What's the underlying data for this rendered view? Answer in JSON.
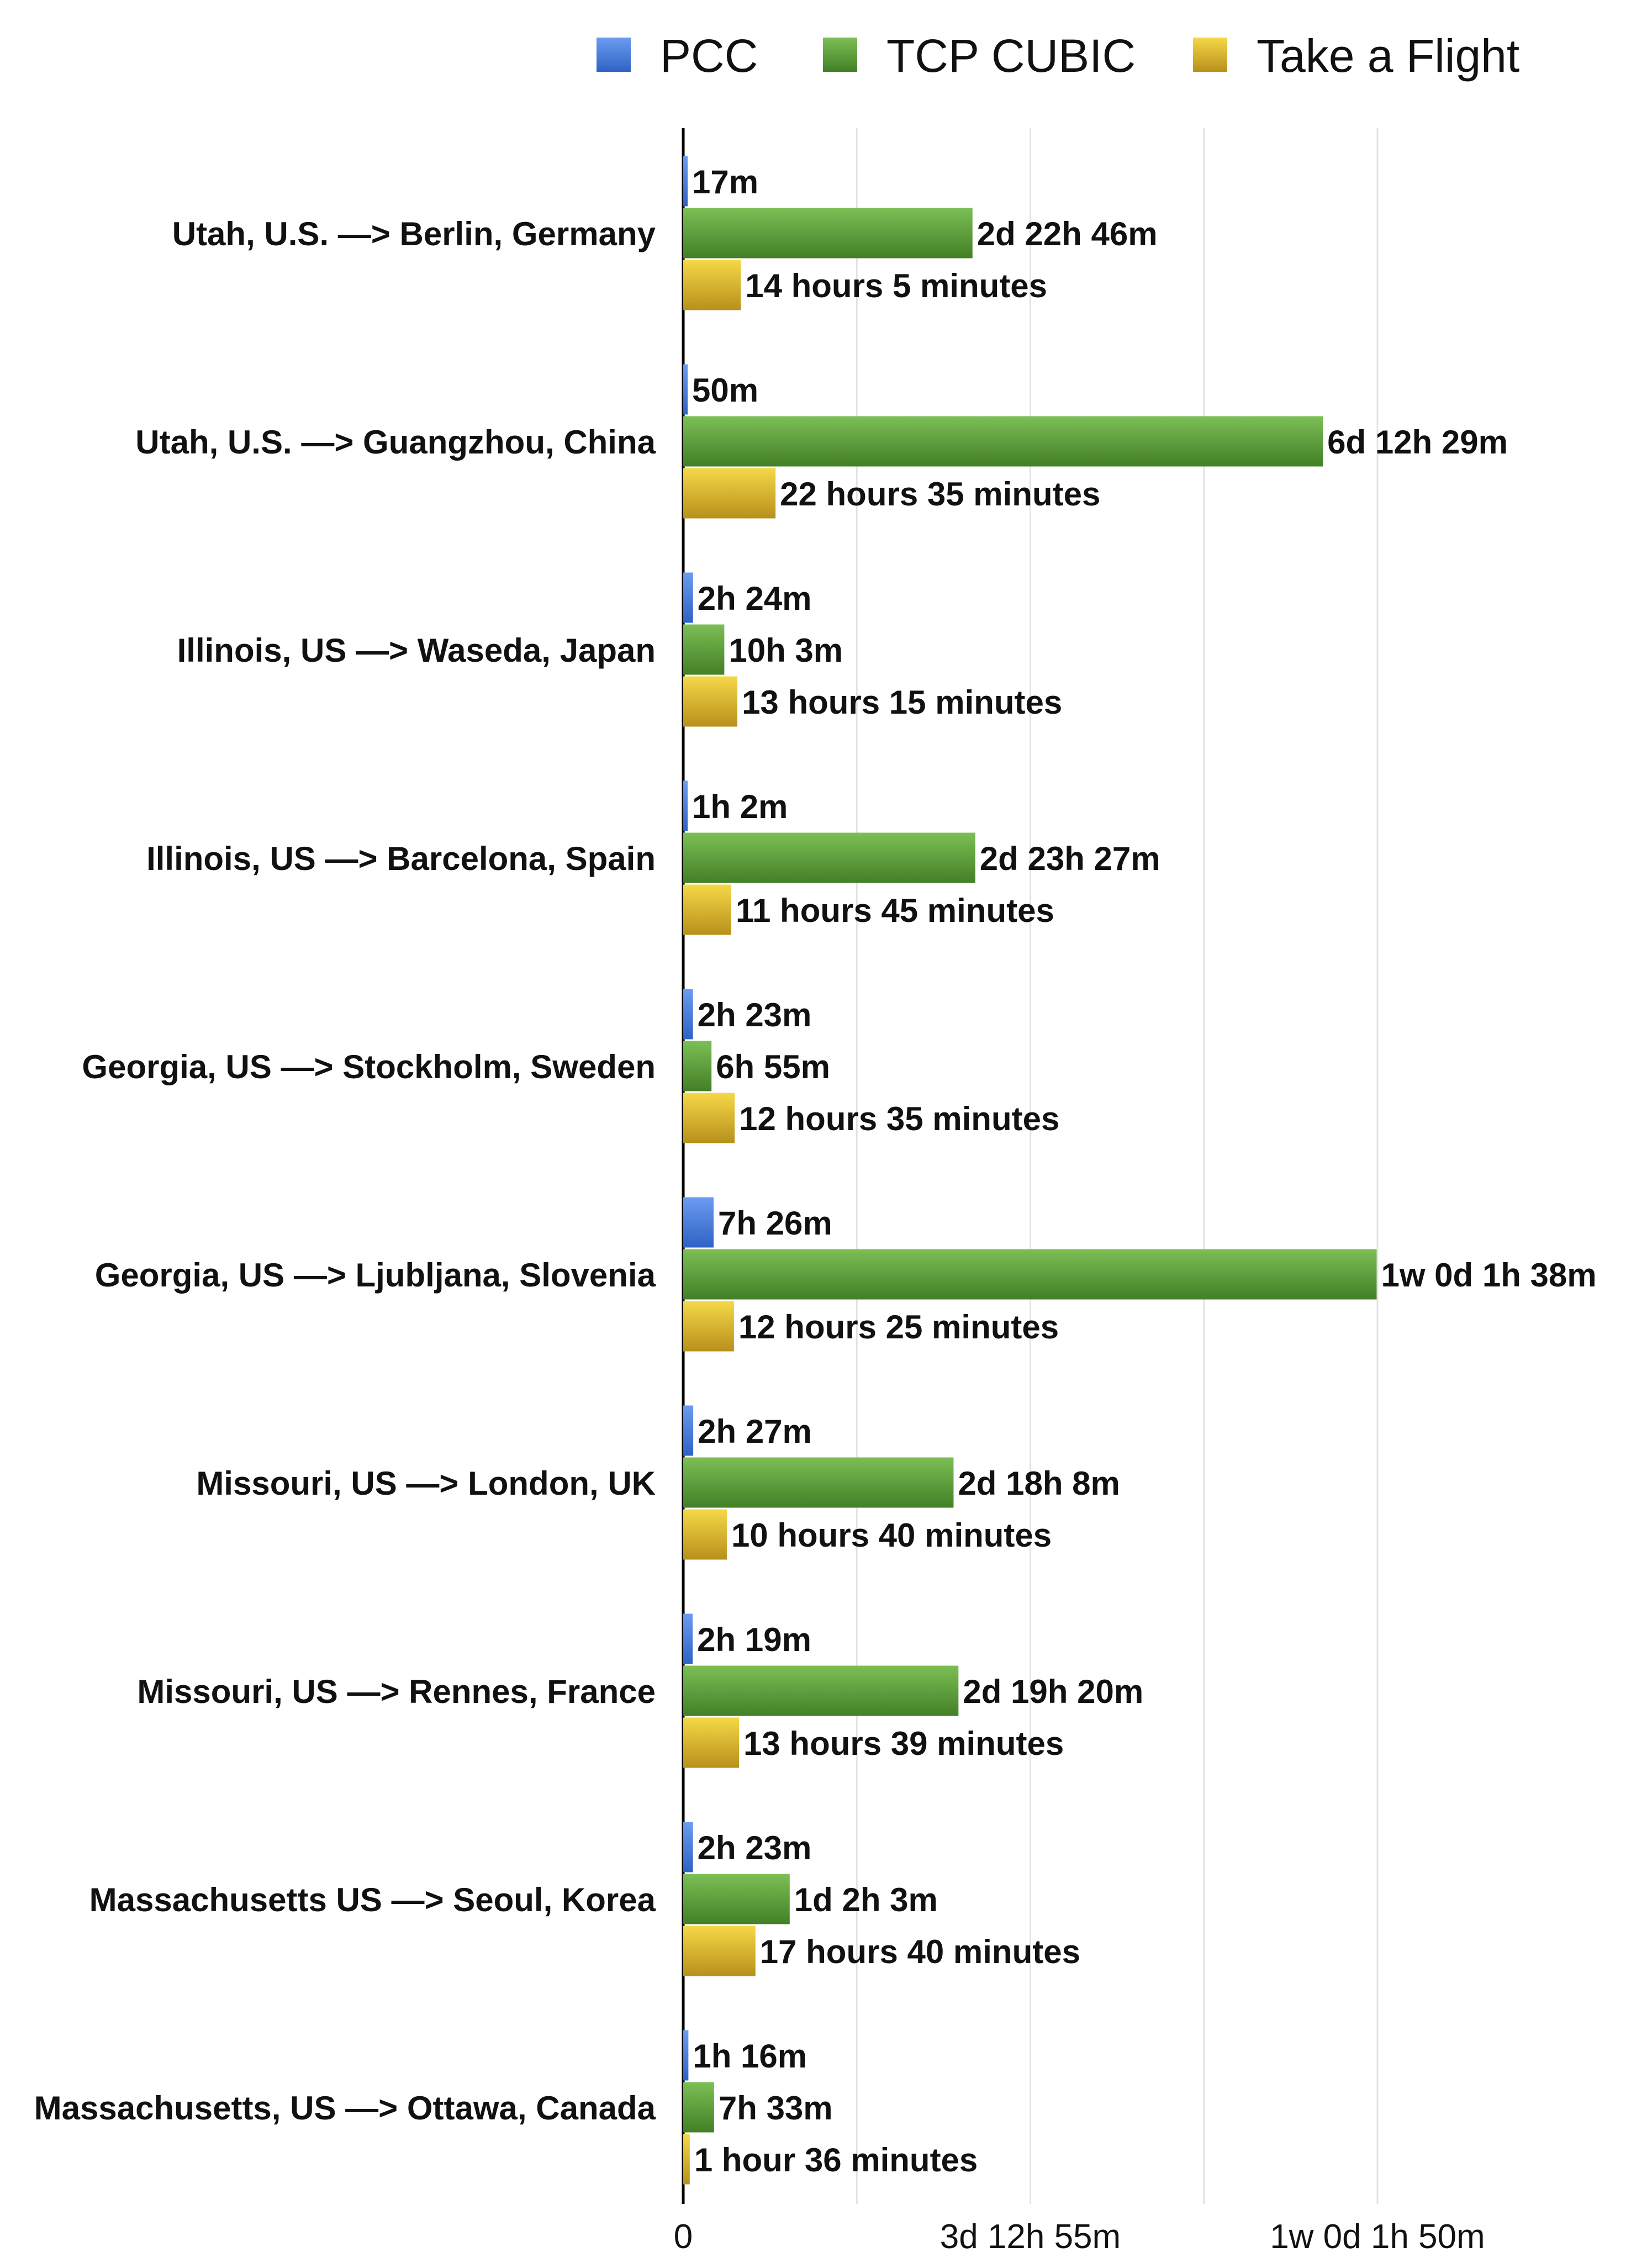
{
  "chart_data": {
    "type": "bar",
    "orientation": "horizontal",
    "legend_position": "top-right",
    "grid": true,
    "x_unit": "minutes",
    "xlim": [
      0,
      11000
    ],
    "ticks": [
      {
        "value": 0,
        "label": "0"
      },
      {
        "value": 5095,
        "label": "3d 12h 55m"
      },
      {
        "value": 10190,
        "label": "1w 0d 1h 50m"
      }
    ],
    "categories": [
      "Utah, U.S. —> Berlin, Germany",
      "Utah, U.S. —> Guangzhou, China",
      "Illinois, US —> Waseda, Japan",
      "Illinois, US —> Barcelona, Spain",
      "Georgia, US —> Stockholm, Sweden",
      "Georgia, US —>  Ljubljana, Slovenia",
      "Missouri, US —> London, UK",
      "Missouri, US —> Rennes, France",
      "Massachusetts  US —> Seoul, Korea",
      "Massachusetts, US —> Ottawa, Canada"
    ],
    "series": [
      {
        "name": "PCC",
        "color": "#4a7fd6",
        "values": [
          17,
          50,
          144,
          62,
          143,
          446,
          147,
          139,
          143,
          76
        ],
        "labels": [
          "17m",
          "50m",
          "2h 24m",
          "1h 2m",
          "2h 23m",
          "7h 26m",
          "2h 27m",
          "2h 19m",
          "2h 23m",
          "1h 16m"
        ]
      },
      {
        "name": "TCP CUBIC",
        "color": "#5d9e3a",
        "values": [
          4246,
          9389,
          603,
          4287,
          415,
          10178,
          3968,
          4040,
          1563,
          453
        ],
        "labels": [
          "2d 22h 46m",
          "6d 12h 29m",
          "10h 3m",
          "2d 23h 27m",
          "6h 55m",
          "1w 0d 1h 38m",
          "2d 18h 8m",
          "2d 19h 20m",
          "1d 2h 3m",
          "7h 33m"
        ]
      },
      {
        "name": "Take a Flight",
        "color": "#d9b22f",
        "values": [
          845,
          1355,
          795,
          705,
          755,
          745,
          640,
          819,
          1060,
          96
        ],
        "labels": [
          "14 hours 5 minutes",
          "22 hours 35 minutes",
          "13 hours 15 minutes",
          "11 hours 45 minutes",
          "12 hours 35 minutes",
          "12 hours 25 minutes",
          "10 hours 40 minutes",
          "13 hours 39 minutes",
          "17 hours 40 minutes",
          "1 hour 36 minutes"
        ]
      }
    ]
  }
}
